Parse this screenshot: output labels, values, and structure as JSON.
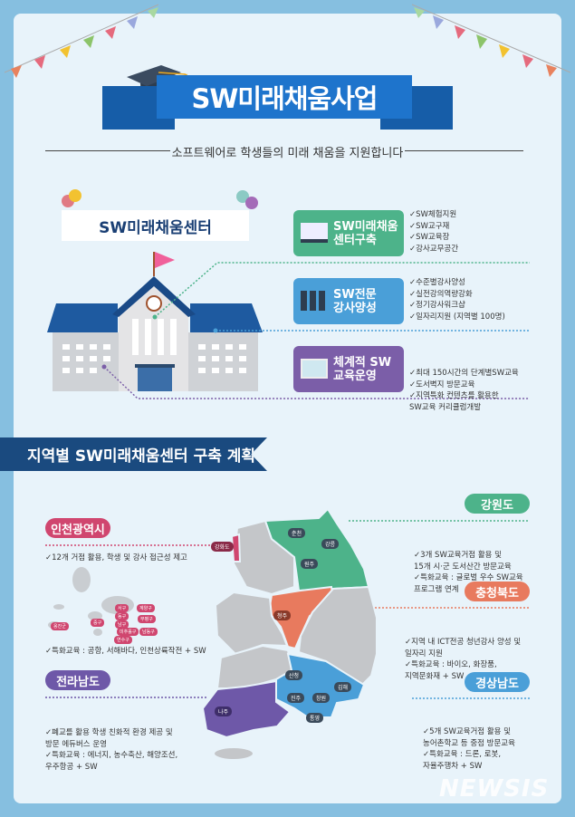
{
  "header": {
    "title": "SW미래채움사업",
    "subtitle": "소프트웨어로 학생들의 미래 채움을 지원합니다"
  },
  "center": {
    "title": "SW미래채움센터",
    "cards": [
      {
        "label": [
          "SW미래채움",
          "센터구축"
        ],
        "color": "#4db38a",
        "icon": "graduation-laptop-icon",
        "items": [
          "✓SW체험지원",
          "✓SW교구재",
          "✓SW교육장",
          "✓강사교무공간"
        ]
      },
      {
        "label": [
          "SW전문",
          "강사양성"
        ],
        "color": "#4a9fd8",
        "icon": "instructors-icon",
        "items": [
          "✓수준별강사양성",
          "✓실전강의역량강화",
          "✓정기강사워크샵",
          "✓일자리지원 (지역별 100명)"
        ]
      },
      {
        "label": [
          "체계적 SW",
          "교육운영"
        ],
        "color": "#7b5ea8",
        "icon": "monitor-icon",
        "items": [
          "✓최대 150시간의 단계별SW교육",
          "✓도서벽지 방문교육",
          "✓지역특화 컨텐츠를 활용한",
          "  SW교육 커리큘럼개발"
        ]
      }
    ]
  },
  "regions": {
    "title": "지역별 SW미래채움센터 구축 계획",
    "incheon": {
      "name": "인천광역시",
      "color": "#d0466f",
      "items": [
        "✓12개 거점 활용, 학생 및 강사 접근성 제고"
      ],
      "special": "✓특화교육 : 공항, 서해바다, 인천상륙작전 + SW",
      "districts": [
        "옹진군",
        "중구",
        "서구",
        "동구",
        "남구",
        "미추홀구",
        "연수구",
        "계양구",
        "부평구",
        "남동구"
      ]
    },
    "jeonnam": {
      "name": "전라남도",
      "color": "#6e58a8",
      "items": [
        "✓폐교를 활용 학생 친화적 환경 제공 및",
        "  방문 에듀버스 운영",
        "✓특화교육 : 에너지, 농수축산, 해양조선,",
        "  우주항공 + SW"
      ]
    },
    "gangwon": {
      "name": "강원도",
      "color": "#4db38a",
      "items": [
        "✓3개 SW교육거점 활용 및",
        "  15개 시·군 도서산간 방문교육",
        "✓특화교육 : 글로벌 우수 SW교육",
        "  프로그램 연계"
      ]
    },
    "chungbuk": {
      "name": "충청북도",
      "color": "#e87a5e",
      "items": [
        "✓지역 내 ICT전공 청년강사 양성 및",
        "  일자리 지원",
        "✓특화교육 : 바이오, 화장품,",
        "  지역문화재 + SW"
      ]
    },
    "gyeongnam": {
      "name": "경상남도",
      "color": "#4a9fd8",
      "items": [
        "✓5개 SW교육거점 활용 및",
        "  농어촌학교 등 중점 방문교육",
        "✓특화교육 : 드론, 로봇,",
        "  자율주행차 + SW"
      ]
    },
    "cities": [
      "강화도",
      "춘천",
      "강릉",
      "원주",
      "청주",
      "산청",
      "진주",
      "창원",
      "김해",
      "통영",
      "나주"
    ]
  },
  "watermark": "NEWSIS"
}
